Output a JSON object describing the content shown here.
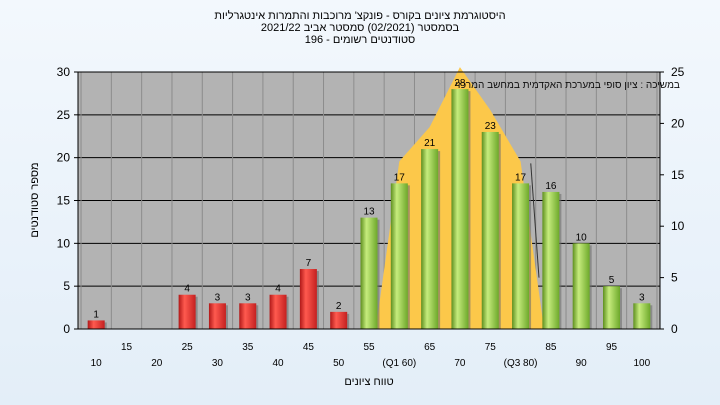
{
  "title_lines": [
    "היסטוגרמת ציונים בקורס - פונקצ' מרוכבות והתמרות אינטגרליות",
    "בסמסטר  (02/2021)  סמסטר אביב 2021/22",
    "סטודנטים רשומים - 196"
  ],
  "colors": {
    "fail_bar": "#e63030",
    "pass_bar": "#8cc63f",
    "envelope": "#fcc84a",
    "plot_bg": "#b3b3b3"
  },
  "chart_data": {
    "type": "bar",
    "categories": [
      "10",
      "15",
      "20",
      "25",
      "30",
      "35",
      "40",
      "45",
      "50",
      "55",
      "60",
      "65",
      "70",
      "75",
      "80",
      "85",
      "90",
      "95",
      "100"
    ],
    "x_tick_labels": [
      "10",
      "15",
      "20",
      "25",
      "30",
      "35",
      "40",
      "45",
      "50",
      "55",
      "(Q1 60)",
      "65",
      "70",
      "75",
      "(Q3 80)",
      "85",
      "90",
      "95",
      "100"
    ],
    "values": [
      1,
      0,
      0,
      4,
      3,
      3,
      4,
      7,
      2,
      13,
      17,
      21,
      28,
      23,
      17,
      16,
      10,
      5,
      3
    ],
    "pass_threshold": 55,
    "xlabel": "טווח ציונים",
    "ylabel": "מספר סטודנטים",
    "ylim": [
      0,
      30
    ],
    "y_ticks": [
      0,
      5,
      10,
      15,
      20,
      25,
      30
    ],
    "y2lim": [
      0,
      25
    ],
    "y2_ticks": [
      0,
      5,
      10,
      15,
      20,
      25
    ],
    "annotation": "במשיכה : ציון סופי במערכת האקדמית במחשב המרכזי",
    "grid": true,
    "q_range": [
      "60",
      "80"
    ]
  }
}
